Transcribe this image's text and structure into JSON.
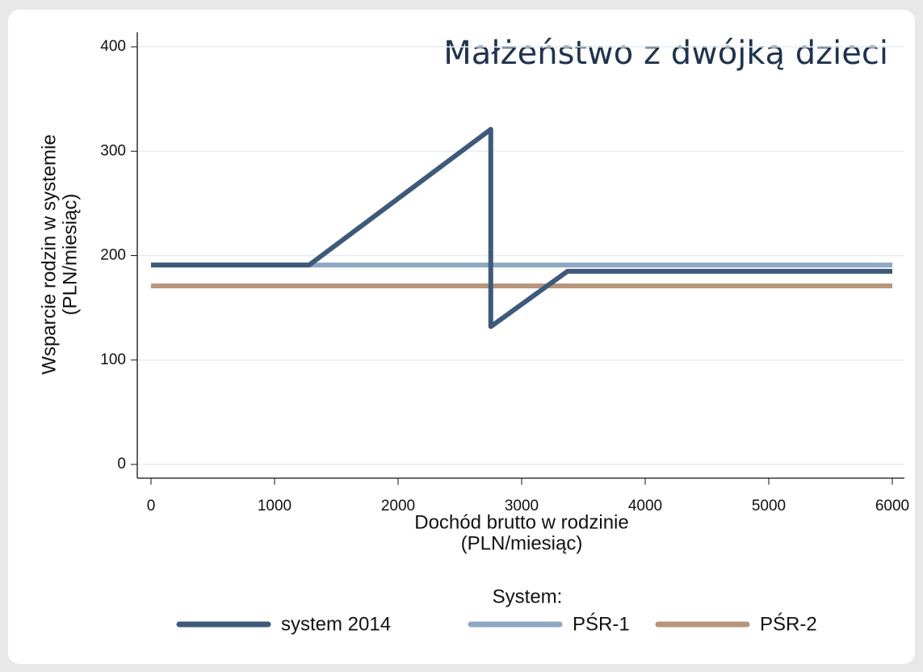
{
  "chart_data": {
    "type": "line",
    "title": "Małżeństwo z dwójką dzieci",
    "y_label": [
      "Wsparcie rodzin w systemie",
      "(PLN/miesiąc)"
    ],
    "x_label": [
      "Dochód brutto w rodzinie",
      "(PLN/miesiąc)"
    ],
    "legend_title": "System:",
    "series": [
      {
        "name": "system 2014",
        "color": "#3d5a7c",
        "x": [
          0,
          1280,
          2750,
          2750,
          3370,
          6000
        ],
        "values": [
          191,
          191,
          321,
          132,
          185,
          185
        ]
      },
      {
        "name": "PŚR-1",
        "color": "#8ea8c3",
        "x": [
          0,
          6000
        ],
        "values": [
          191,
          191
        ]
      },
      {
        "name": "PŚR-2",
        "color": "#b8957b",
        "x": [
          0,
          6000
        ],
        "values": [
          171,
          171
        ]
      }
    ],
    "xlim": [
      0,
      6000
    ],
    "xticks": [
      0,
      1000,
      2000,
      3000,
      4000,
      5000,
      6000
    ],
    "ylim": [
      0,
      400
    ],
    "yticks": [
      0,
      100,
      200,
      300,
      400
    ],
    "grid": true,
    "legend": "bottom"
  }
}
